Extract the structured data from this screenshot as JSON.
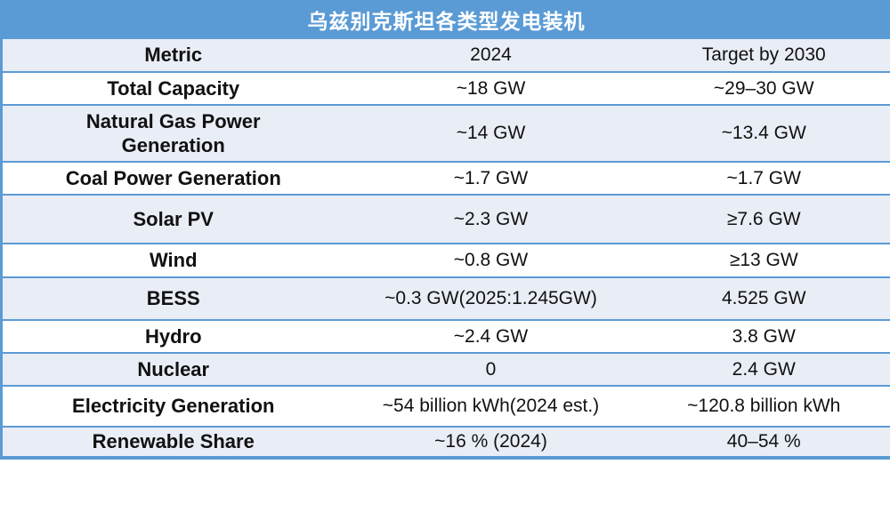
{
  "table": {
    "title": "乌兹别克斯坦各类型发电装机",
    "columns": [
      "Metric",
      "2024",
      "Target by 2030"
    ],
    "rows": [
      {
        "metric": "Total Capacity",
        "y2024": "~18 GW",
        "target": "~29–30 GW"
      },
      {
        "metric": "Natural Gas Power Generation",
        "y2024": "~14 GW",
        "target": "~13.4 GW"
      },
      {
        "metric": "Coal Power Generation",
        "y2024": "~1.7 GW",
        "target": "~1.7 GW"
      },
      {
        "metric": "Solar PV",
        "y2024": "~2.3 GW",
        "target": "≥7.6 GW"
      },
      {
        "metric": "Wind",
        "y2024": "~0.8 GW",
        "target": "≥13 GW"
      },
      {
        "metric": "BESS",
        "y2024": "~0.3 GW(2025:1.245GW)",
        "target": "4.525 GW"
      },
      {
        "metric": "Hydro",
        "y2024": "~2.4 GW",
        "target": "3.8 GW"
      },
      {
        "metric": "Nuclear",
        "y2024": "0",
        "target": "2.4 GW"
      },
      {
        "metric": "Electricity Generation",
        "y2024": "~54 billion kWh(2024 est.)",
        "target": "~120.8 billion kWh"
      },
      {
        "metric": "Renewable Share",
        "y2024": "~16 % (2024)",
        "target": "40–54 %"
      }
    ]
  },
  "colors": {
    "accent_blue": "#5B9BD5",
    "light_row_fill": "#E9EDF6",
    "white_row_fill": "#FFFFFF",
    "title_text": "#FFFFFF",
    "body_text": "#111111"
  }
}
